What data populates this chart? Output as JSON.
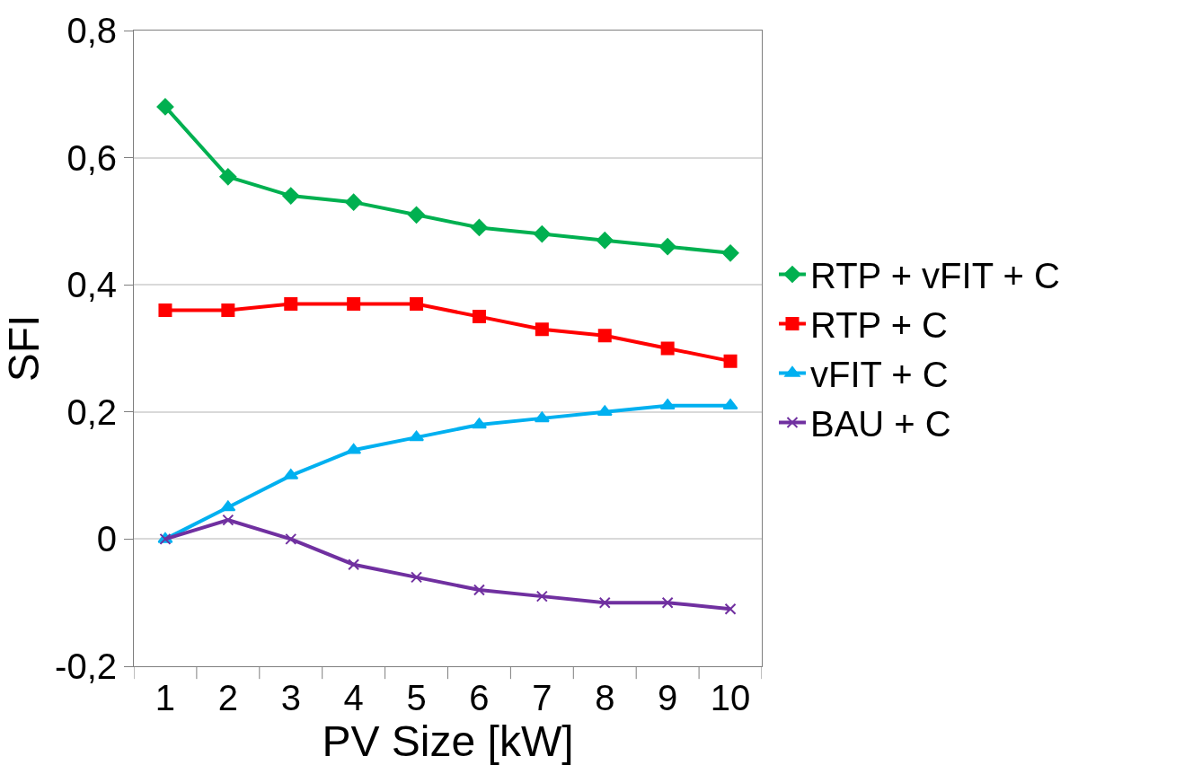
{
  "chart_data": {
    "type": "line",
    "xlabel": "PV Size [kW]",
    "ylabel": "SFI",
    "categories": [
      "1",
      "2",
      "3",
      "4",
      "5",
      "6",
      "7",
      "8",
      "9",
      "10"
    ],
    "series": [
      {
        "name": "RTP + vFIT + C",
        "color": "#00b050",
        "marker": "diamond",
        "values": [
          0.68,
          0.57,
          0.54,
          0.53,
          0.51,
          0.49,
          0.48,
          0.47,
          0.46,
          0.45
        ]
      },
      {
        "name": "RTP + C",
        "color": "#ff0000",
        "marker": "square",
        "values": [
          0.36,
          0.36,
          0.37,
          0.37,
          0.37,
          0.35,
          0.33,
          0.32,
          0.3,
          0.28
        ]
      },
      {
        "name": "vFIT + C",
        "color": "#00b0f0",
        "marker": "triangle",
        "values": [
          0.0,
          0.05,
          0.1,
          0.14,
          0.16,
          0.18,
          0.19,
          0.2,
          0.21,
          0.21
        ]
      },
      {
        "name": "BAU + C",
        "color": "#7030a0",
        "marker": "cross",
        "values": [
          0.0,
          0.03,
          0.0,
          -0.04,
          -0.06,
          -0.08,
          -0.09,
          -0.1,
          -0.1,
          -0.11
        ]
      }
    ],
    "ylim": [
      -0.2,
      0.8
    ],
    "yticks": [
      {
        "value": -0.2,
        "label": "-0,2"
      },
      0,
      {
        "value": 0.2,
        "label": "0,2"
      },
      {
        "value": 0.4,
        "label": "0,4"
      },
      {
        "value": 0.6,
        "label": "0,6"
      },
      {
        "value": 0.8,
        "label": "0,8"
      }
    ],
    "grid": "y",
    "legend": "right",
    "line_style": "solid"
  }
}
